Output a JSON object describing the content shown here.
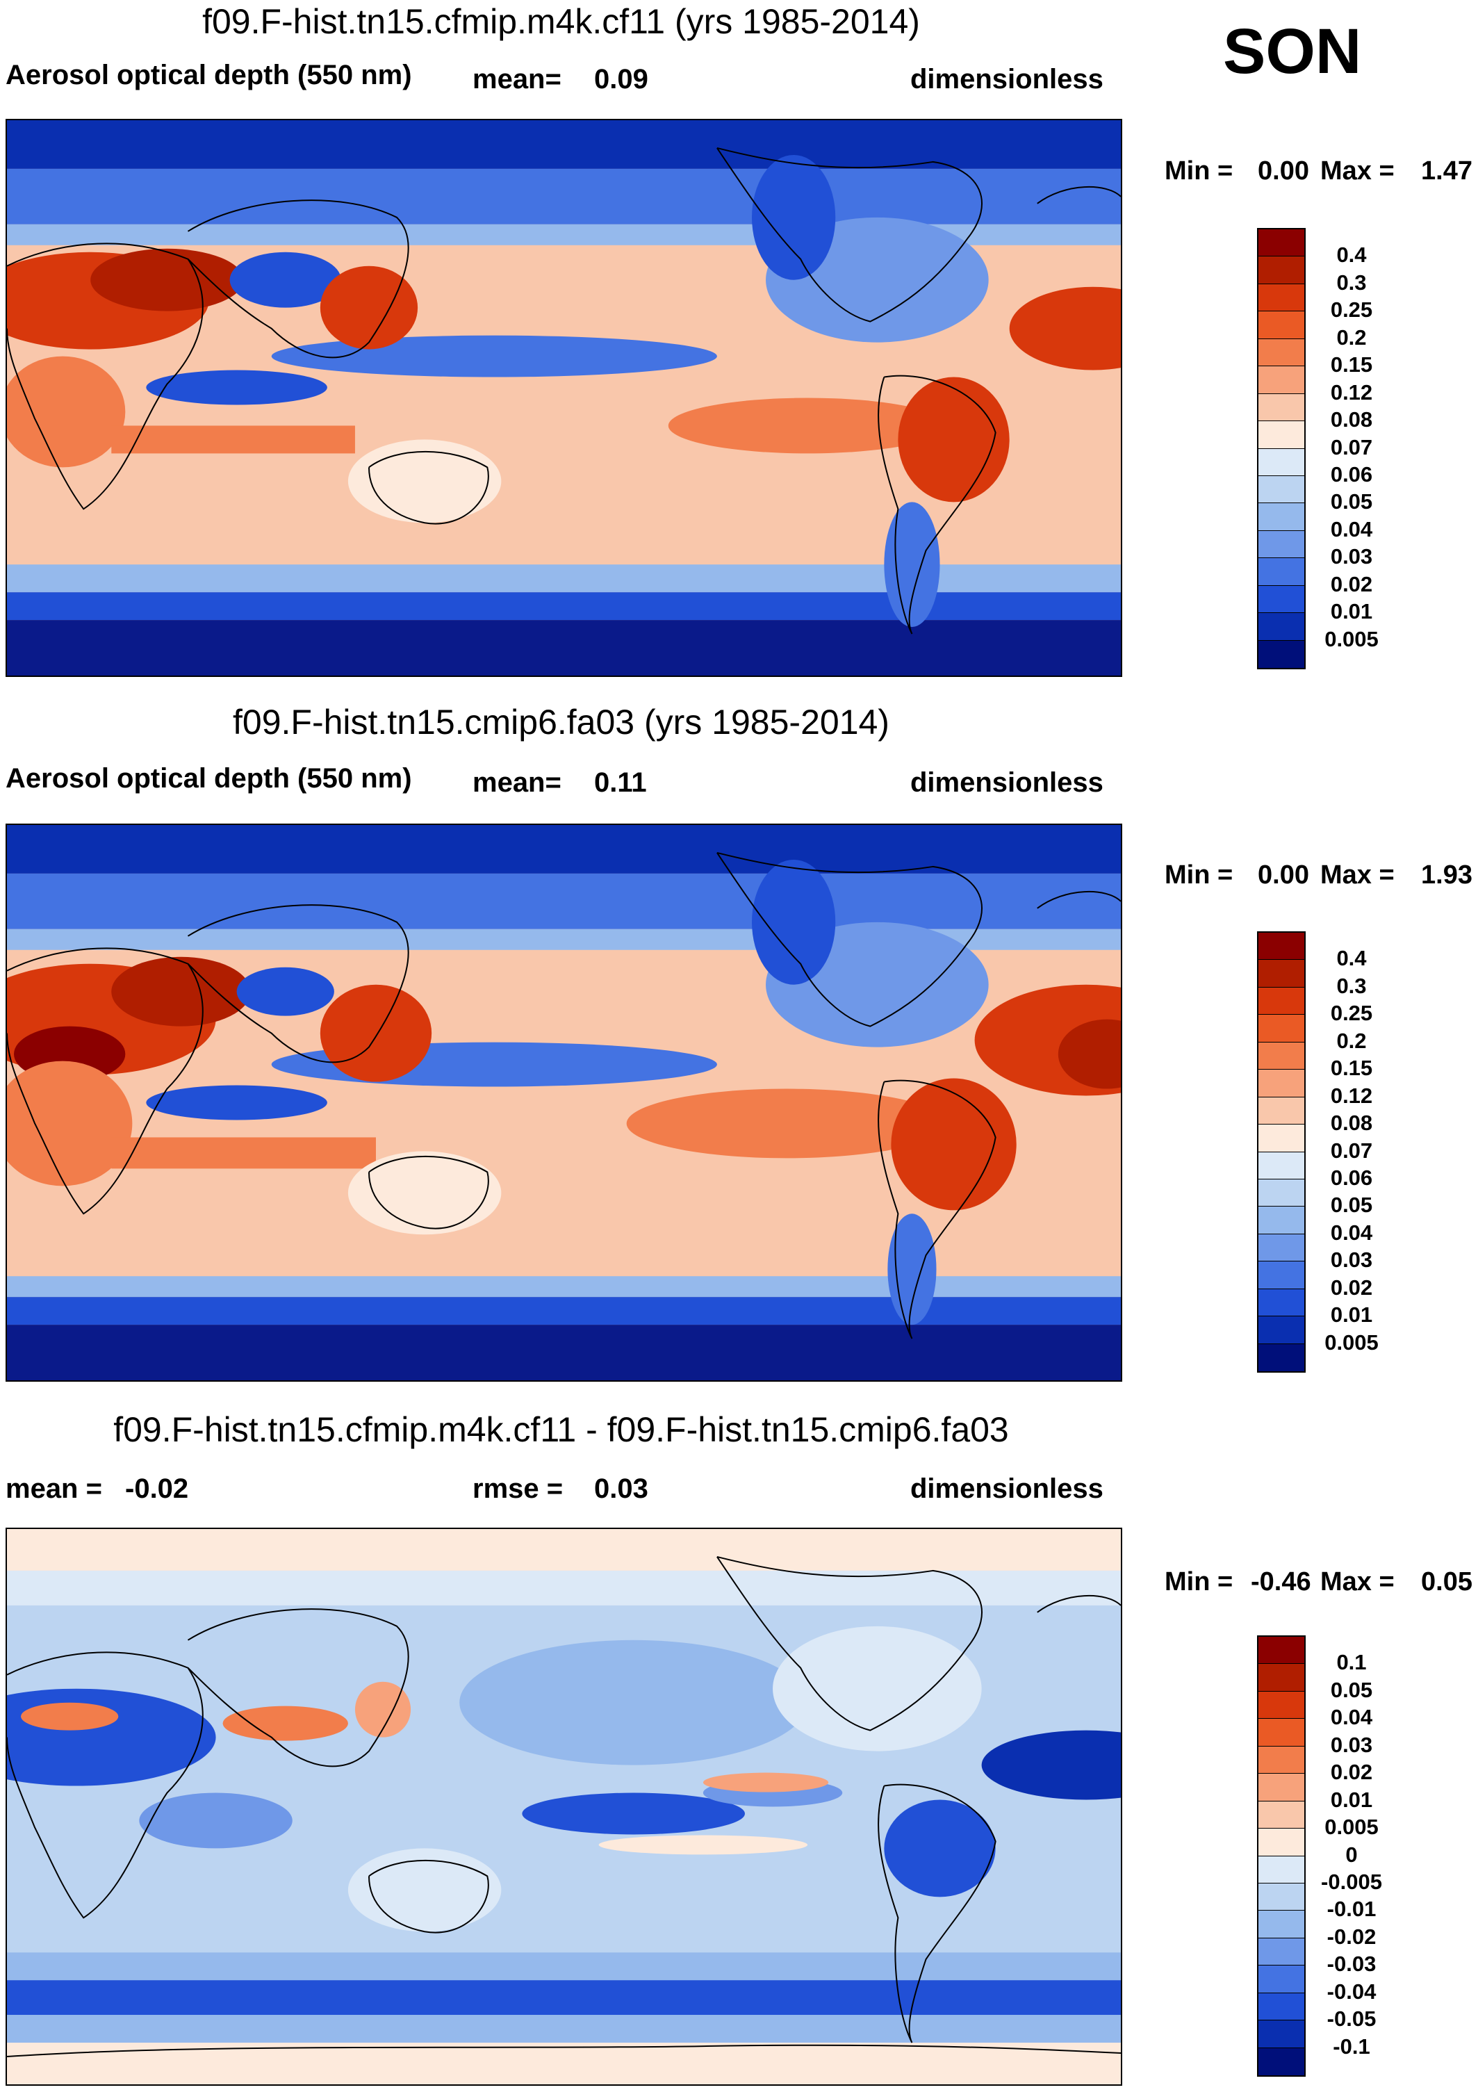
{
  "season": "SON",
  "panels": [
    {
      "title": "f09.F-hist.tn15.cfmip.m4k.cf11 (yrs 1985-2014)",
      "left_label": "Aerosol optical depth (550 nm)",
      "mid_label": "mean=",
      "mid_value": "0.09",
      "units": "dimensionless",
      "min_label": "Min =",
      "min_value": "0.00",
      "max_label": "Max =",
      "max_value": "1.47"
    },
    {
      "title": "f09.F-hist.tn15.cmip6.fa03 (yrs 1985-2014)",
      "left_label": "Aerosol optical depth (550 nm)",
      "mid_label": "mean=",
      "mid_value": "0.11",
      "units": "dimensionless",
      "min_label": "Min =",
      "min_value": "0.00",
      "max_label": "Max =",
      "max_value": "1.93"
    },
    {
      "title": "f09.F-hist.tn15.cfmip.m4k.cf11 - f09.F-hist.tn15.cmip6.fa03",
      "left_label": "mean =",
      "left_value": "-0.02",
      "mid_label": "rmse =",
      "mid_value": "0.03",
      "units": "dimensionless",
      "min_label": "Min =",
      "min_value": "-0.46",
      "max_label": "Max =",
      "max_value": "0.05"
    }
  ],
  "colorbars": {
    "aod": {
      "colors": [
        "#8b0000",
        "#b01e00",
        "#d8380c",
        "#ea5a25",
        "#f27d4b",
        "#f7a27b",
        "#f9c7ab",
        "#fdeadc",
        "#dce9f7",
        "#bcd4f1",
        "#95b9ec",
        "#6f98e8",
        "#4473e2",
        "#2150d6",
        "#0a2fb0",
        "#000f7a"
      ],
      "labels": [
        "0.4",
        "0.3",
        "0.25",
        "0.2",
        "0.15",
        "0.12",
        "0.08",
        "0.07",
        "0.06",
        "0.05",
        "0.04",
        "0.03",
        "0.02",
        "0.01",
        "0.005"
      ]
    },
    "diff": {
      "colors": [
        "#8b0000",
        "#b01e00",
        "#d8380c",
        "#ea5a25",
        "#f27d4b",
        "#f7a27b",
        "#f9c7ab",
        "#fdeadc",
        "#dce9f7",
        "#bcd4f1",
        "#95b9ec",
        "#6f98e8",
        "#4473e2",
        "#2150d6",
        "#0a2fb0",
        "#000f7a"
      ],
      "labels": [
        "0.1",
        "0.05",
        "0.04",
        "0.03",
        "0.02",
        "0.01",
        "0.005",
        "0",
        "-0.005",
        "-0.01",
        "-0.02",
        "-0.03",
        "-0.04",
        "-0.05",
        "-0.1"
      ]
    }
  },
  "map_palette": {
    "ocean_deep": "#0a1a8a",
    "pale_orange": "#f9c7ab",
    "light_blue": "#bcd4f1",
    "cream": "#fdeadc"
  }
}
